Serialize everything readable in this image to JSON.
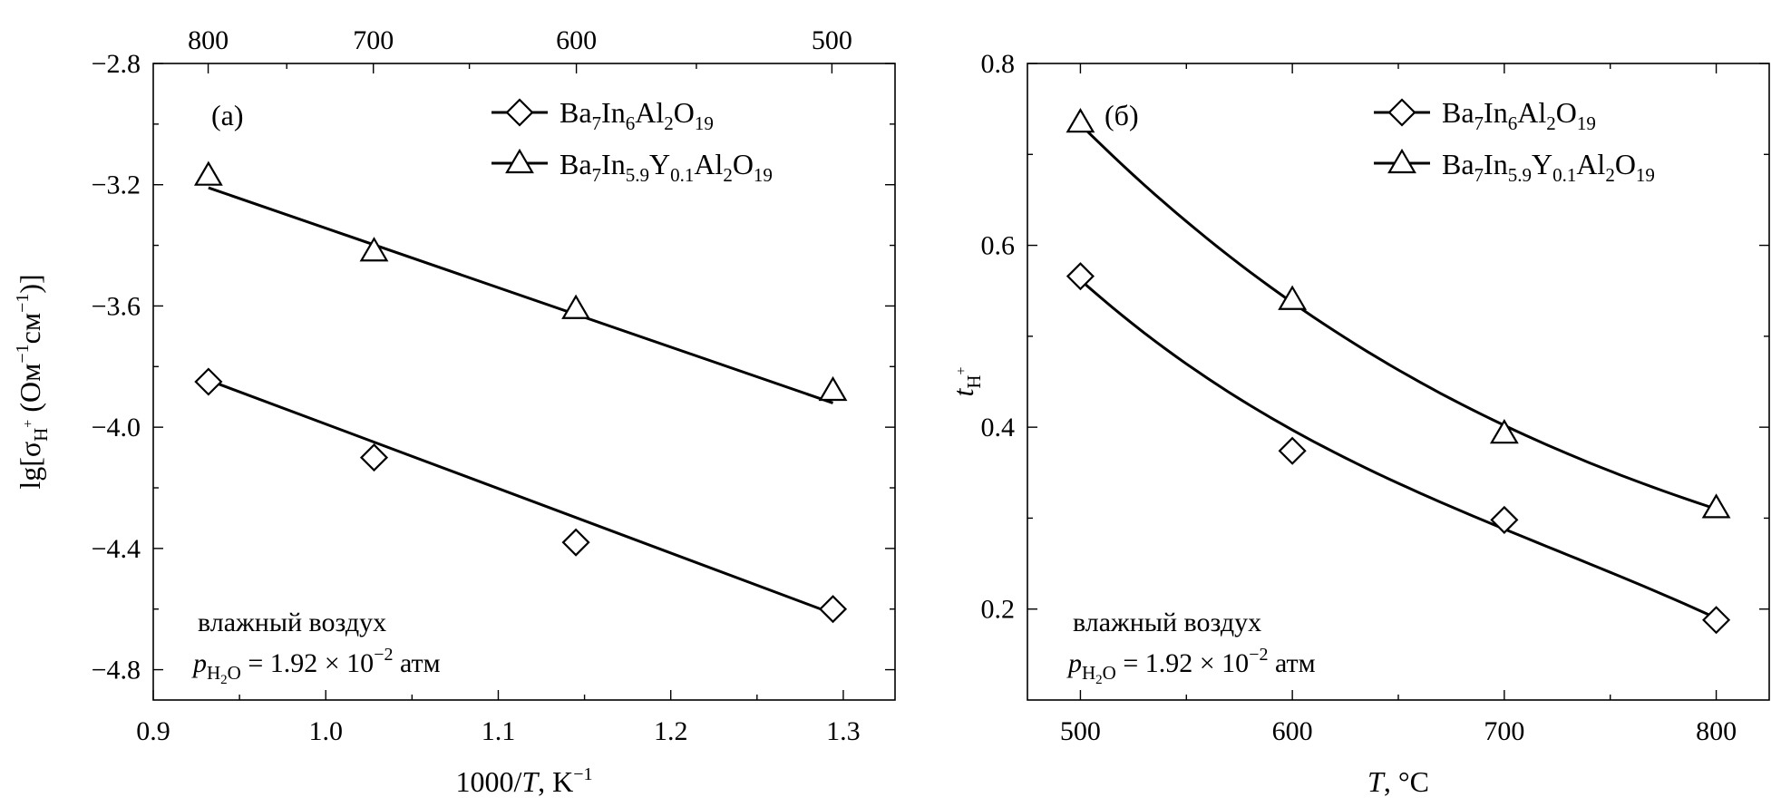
{
  "chart_data": [
    {
      "type": "scatter",
      "panel_label": "(a)",
      "xlabel_pre": "1000/",
      "xlabel_var": "T",
      "xlabel_post": ", K",
      "xlabel_sup": "−1",
      "ylabel": {
        "a": "lg[σ",
        "sub": "H",
        "sup1": "+",
        "b": " (Ом",
        "sup2": "−1",
        "c": "см",
        "sup3": "−1",
        "d": ")]"
      },
      "xlim": [
        0.9,
        1.33
      ],
      "ylim": [
        -4.9,
        -2.8
      ],
      "x_ticks": [
        0.9,
        1.0,
        1.1,
        1.2,
        1.3
      ],
      "x_tick_labels": [
        "0.9",
        "1.0",
        "1.1",
        "1.2",
        "1.3"
      ],
      "y_ticks": [
        -2.8,
        -3.2,
        -3.6,
        -4.0,
        -4.4,
        -4.8
      ],
      "y_tick_labels": [
        "−2.8",
        "−3.2",
        "−3.6",
        "−4.0",
        "−4.4",
        "−4.8"
      ],
      "top_axis_temps": [
        800,
        700,
        600,
        500
      ],
      "top_axis_labels": [
        "800",
        "700",
        "600",
        "500"
      ],
      "series": [
        {
          "name": "Ba7In6Al2O19",
          "marker": "diamond",
          "x": [
            0.932,
            1.028,
            1.145,
            1.294
          ],
          "y": [
            -3.85,
            -4.1,
            -4.38,
            -4.6
          ],
          "fit": [
            [
              0.932,
              -3.845
            ],
            [
              1.294,
              -4.615
            ]
          ]
        },
        {
          "name": "Ba7In5.9Y0.1Al2O19",
          "marker": "triangle",
          "x": [
            0.932,
            1.028,
            1.145,
            1.294
          ],
          "y": [
            -3.17,
            -3.42,
            -3.61,
            -3.88
          ],
          "fit": [
            [
              0.932,
              -3.21
            ],
            [
              1.294,
              -3.92
            ]
          ]
        }
      ],
      "annotation_line1": "влажный воздух",
      "annotation_line2": {
        "p": "p",
        "sub_a": "H",
        "sub_2": "2",
        "sub_b": "O",
        "eq": " = 1.92 × 10",
        "sup": "−2",
        "unit": " атм"
      }
    },
    {
      "type": "scatter",
      "panel_label": "(б)",
      "xlabel_var": "T",
      "xlabel_post": ", °C",
      "ylabel": {
        "t": "t",
        "sub": "H",
        "sup": "+"
      },
      "xlim": [
        475,
        825
      ],
      "ylim": [
        0.1,
        0.8
      ],
      "x_ticks": [
        500,
        600,
        700,
        800
      ],
      "x_tick_labels": [
        "500",
        "600",
        "700",
        "800"
      ],
      "y_ticks": [
        0.2,
        0.4,
        0.6,
        0.8
      ],
      "y_tick_labels": [
        "0.2",
        "0.4",
        "0.6",
        "0.8"
      ],
      "series": [
        {
          "name": "Ba7In6Al2O19",
          "marker": "diamond",
          "x": [
            500,
            600,
            700,
            800
          ],
          "y": [
            0.566,
            0.374,
            0.298,
            0.188
          ],
          "fit_y": [
            0.562,
            0.397,
            0.288,
            0.19
          ]
        },
        {
          "name": "Ba7In5.9Y0.1Al2O19",
          "marker": "triangle",
          "x": [
            500,
            600,
            700,
            800
          ],
          "y": [
            0.735,
            0.54,
            0.393,
            0.311
          ],
          "fit_y": [
            0.733,
            0.537,
            0.402,
            0.31
          ]
        }
      ],
      "annotation_line1": "влажный воздух",
      "annotation_line2": {
        "p": "p",
        "sub_a": "H",
        "sub_2": "2",
        "sub_b": "O",
        "eq": " = 1.92 × 10",
        "sup": "−2",
        "unit": " атм"
      }
    }
  ],
  "legend": [
    {
      "marker": "diamond",
      "a": "Ba",
      "s1": "7",
      "b": "In",
      "s2": "6",
      "c": "Al",
      "s3": "2",
      "d": "O",
      "s4": "19"
    },
    {
      "marker": "triangle",
      "a": "Ba",
      "s1": "7",
      "b": "In",
      "s2": "5.9",
      "c": "Y",
      "s3": "0.1",
      "d": "Al",
      "s4": "2",
      "e": "O",
      "s5": "19"
    }
  ]
}
